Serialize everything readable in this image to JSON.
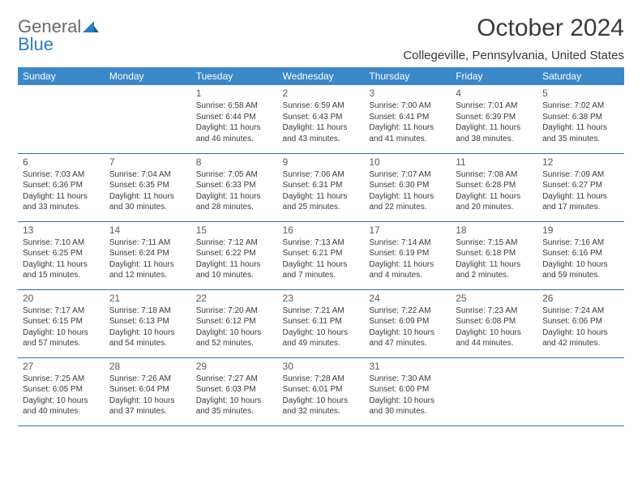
{
  "logo": {
    "word1": "General",
    "word2": "Blue"
  },
  "title": "October 2024",
  "location": "Collegeville, Pennsylvania, United States",
  "colors": {
    "header_bg": "#3b88c8",
    "header_text": "#ffffff",
    "rule": "#2f6fa8",
    "body_text": "#3a3a3a",
    "logo_gray": "#6a6a6a",
    "logo_blue": "#2f7ac0",
    "background": "#ffffff"
  },
  "day_headers": [
    "Sunday",
    "Monday",
    "Tuesday",
    "Wednesday",
    "Thursday",
    "Friday",
    "Saturday"
  ],
  "weeks": [
    [
      {
        "num": "",
        "lines": []
      },
      {
        "num": "",
        "lines": []
      },
      {
        "num": "1",
        "lines": [
          "Sunrise: 6:58 AM",
          "Sunset: 6:44 PM",
          "Daylight: 11 hours",
          "and 46 minutes."
        ]
      },
      {
        "num": "2",
        "lines": [
          "Sunrise: 6:59 AM",
          "Sunset: 6:43 PM",
          "Daylight: 11 hours",
          "and 43 minutes."
        ]
      },
      {
        "num": "3",
        "lines": [
          "Sunrise: 7:00 AM",
          "Sunset: 6:41 PM",
          "Daylight: 11 hours",
          "and 41 minutes."
        ]
      },
      {
        "num": "4",
        "lines": [
          "Sunrise: 7:01 AM",
          "Sunset: 6:39 PM",
          "Daylight: 11 hours",
          "and 38 minutes."
        ]
      },
      {
        "num": "5",
        "lines": [
          "Sunrise: 7:02 AM",
          "Sunset: 6:38 PM",
          "Daylight: 11 hours",
          "and 35 minutes."
        ]
      }
    ],
    [
      {
        "num": "6",
        "lines": [
          "Sunrise: 7:03 AM",
          "Sunset: 6:36 PM",
          "Daylight: 11 hours",
          "and 33 minutes."
        ]
      },
      {
        "num": "7",
        "lines": [
          "Sunrise: 7:04 AM",
          "Sunset: 6:35 PM",
          "Daylight: 11 hours",
          "and 30 minutes."
        ]
      },
      {
        "num": "8",
        "lines": [
          "Sunrise: 7:05 AM",
          "Sunset: 6:33 PM",
          "Daylight: 11 hours",
          "and 28 minutes."
        ]
      },
      {
        "num": "9",
        "lines": [
          "Sunrise: 7:06 AM",
          "Sunset: 6:31 PM",
          "Daylight: 11 hours",
          "and 25 minutes."
        ]
      },
      {
        "num": "10",
        "lines": [
          "Sunrise: 7:07 AM",
          "Sunset: 6:30 PM",
          "Daylight: 11 hours",
          "and 22 minutes."
        ]
      },
      {
        "num": "11",
        "lines": [
          "Sunrise: 7:08 AM",
          "Sunset: 6:28 PM",
          "Daylight: 11 hours",
          "and 20 minutes."
        ]
      },
      {
        "num": "12",
        "lines": [
          "Sunrise: 7:09 AM",
          "Sunset: 6:27 PM",
          "Daylight: 11 hours",
          "and 17 minutes."
        ]
      }
    ],
    [
      {
        "num": "13",
        "lines": [
          "Sunrise: 7:10 AM",
          "Sunset: 6:25 PM",
          "Daylight: 11 hours",
          "and 15 minutes."
        ]
      },
      {
        "num": "14",
        "lines": [
          "Sunrise: 7:11 AM",
          "Sunset: 6:24 PM",
          "Daylight: 11 hours",
          "and 12 minutes."
        ]
      },
      {
        "num": "15",
        "lines": [
          "Sunrise: 7:12 AM",
          "Sunset: 6:22 PM",
          "Daylight: 11 hours",
          "and 10 minutes."
        ]
      },
      {
        "num": "16",
        "lines": [
          "Sunrise: 7:13 AM",
          "Sunset: 6:21 PM",
          "Daylight: 11 hours",
          "and 7 minutes."
        ]
      },
      {
        "num": "17",
        "lines": [
          "Sunrise: 7:14 AM",
          "Sunset: 6:19 PM",
          "Daylight: 11 hours",
          "and 4 minutes."
        ]
      },
      {
        "num": "18",
        "lines": [
          "Sunrise: 7:15 AM",
          "Sunset: 6:18 PM",
          "Daylight: 11 hours",
          "and 2 minutes."
        ]
      },
      {
        "num": "19",
        "lines": [
          "Sunrise: 7:16 AM",
          "Sunset: 6:16 PM",
          "Daylight: 10 hours",
          "and 59 minutes."
        ]
      }
    ],
    [
      {
        "num": "20",
        "lines": [
          "Sunrise: 7:17 AM",
          "Sunset: 6:15 PM",
          "Daylight: 10 hours",
          "and 57 minutes."
        ]
      },
      {
        "num": "21",
        "lines": [
          "Sunrise: 7:18 AM",
          "Sunset: 6:13 PM",
          "Daylight: 10 hours",
          "and 54 minutes."
        ]
      },
      {
        "num": "22",
        "lines": [
          "Sunrise: 7:20 AM",
          "Sunset: 6:12 PM",
          "Daylight: 10 hours",
          "and 52 minutes."
        ]
      },
      {
        "num": "23",
        "lines": [
          "Sunrise: 7:21 AM",
          "Sunset: 6:11 PM",
          "Daylight: 10 hours",
          "and 49 minutes."
        ]
      },
      {
        "num": "24",
        "lines": [
          "Sunrise: 7:22 AM",
          "Sunset: 6:09 PM",
          "Daylight: 10 hours",
          "and 47 minutes."
        ]
      },
      {
        "num": "25",
        "lines": [
          "Sunrise: 7:23 AM",
          "Sunset: 6:08 PM",
          "Daylight: 10 hours",
          "and 44 minutes."
        ]
      },
      {
        "num": "26",
        "lines": [
          "Sunrise: 7:24 AM",
          "Sunset: 6:06 PM",
          "Daylight: 10 hours",
          "and 42 minutes."
        ]
      }
    ],
    [
      {
        "num": "27",
        "lines": [
          "Sunrise: 7:25 AM",
          "Sunset: 6:05 PM",
          "Daylight: 10 hours",
          "and 40 minutes."
        ]
      },
      {
        "num": "28",
        "lines": [
          "Sunrise: 7:26 AM",
          "Sunset: 6:04 PM",
          "Daylight: 10 hours",
          "and 37 minutes."
        ]
      },
      {
        "num": "29",
        "lines": [
          "Sunrise: 7:27 AM",
          "Sunset: 6:03 PM",
          "Daylight: 10 hours",
          "and 35 minutes."
        ]
      },
      {
        "num": "30",
        "lines": [
          "Sunrise: 7:28 AM",
          "Sunset: 6:01 PM",
          "Daylight: 10 hours",
          "and 32 minutes."
        ]
      },
      {
        "num": "31",
        "lines": [
          "Sunrise: 7:30 AM",
          "Sunset: 6:00 PM",
          "Daylight: 10 hours",
          "and 30 minutes."
        ]
      },
      {
        "num": "",
        "lines": []
      },
      {
        "num": "",
        "lines": []
      }
    ]
  ]
}
